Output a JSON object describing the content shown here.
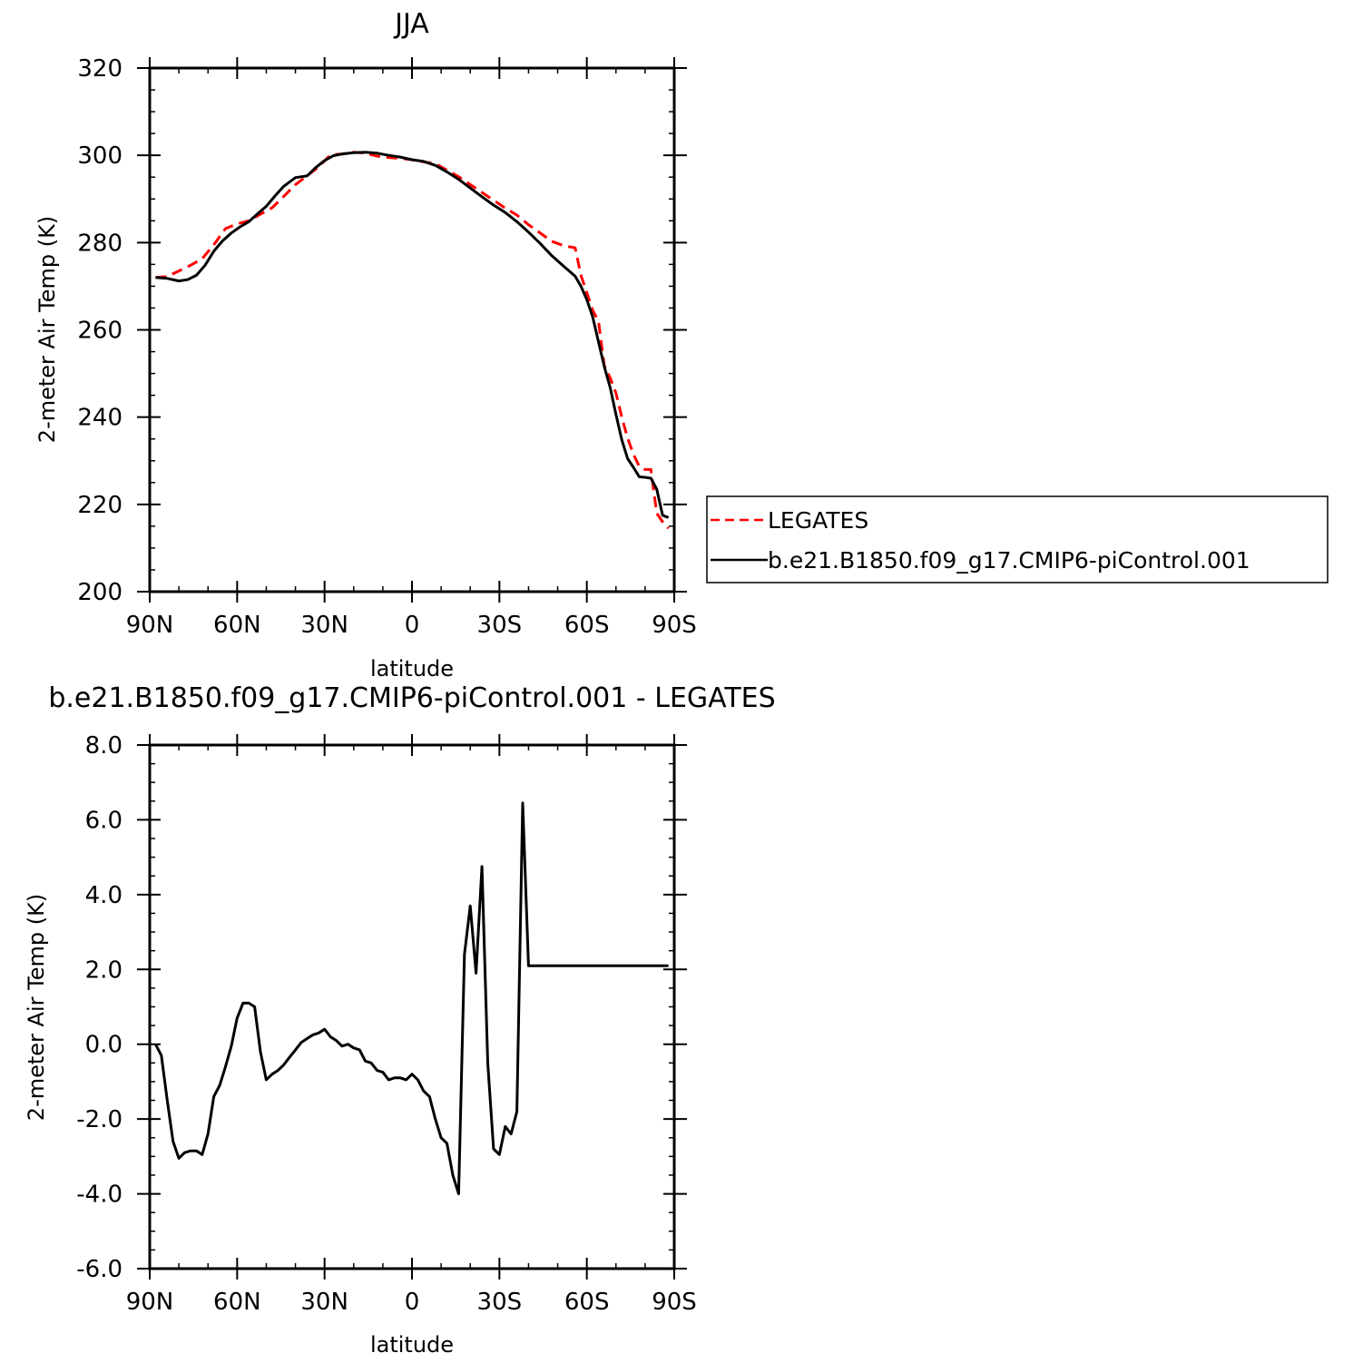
{
  "chart_data": [
    {
      "type": "line",
      "title": "JJA",
      "xlabel": "latitude",
      "ylabel": "2-meter Air Temp (K)",
      "xlim": [
        90,
        -90
      ],
      "ylim": [
        200,
        320
      ],
      "xticks": [
        90,
        60,
        30,
        0,
        -30,
        -60,
        -90
      ],
      "xtick_labels": [
        "90N",
        "60N",
        "30N",
        "0",
        "30S",
        "60S",
        "90S"
      ],
      "yticks": [
        200,
        220,
        240,
        260,
        280,
        300,
        320
      ],
      "ytick_labels": [
        "200",
        "220",
        "240",
        "260",
        "280",
        "300",
        "320"
      ],
      "legend_position": "right",
      "series": [
        {
          "name": "LEGATES",
          "color": "#ff0000",
          "dash": "dashed",
          "x": [
            88,
            84,
            80,
            76,
            72,
            68,
            64,
            60,
            56,
            52,
            48,
            44,
            40,
            36,
            32,
            28,
            24,
            20,
            16,
            12,
            8,
            4,
            0,
            -4,
            -8,
            -12,
            -16,
            -20,
            -24,
            -28,
            -32,
            -36,
            -40,
            -44,
            -48,
            -52,
            -56,
            -58,
            -60,
            -62,
            -64,
            -66,
            -68,
            -70,
            -72,
            -74,
            -76,
            -78,
            -80,
            -82,
            -84,
            -86,
            -88
          ],
          "values": [
            272,
            272.2,
            273.5,
            274.8,
            276.3,
            279.5,
            283.2,
            284.3,
            285,
            286.5,
            288,
            290.6,
            293.3,
            295.3,
            297.4,
            300.1,
            300.3,
            300.7,
            300.5,
            299.8,
            299.5,
            299.3,
            299,
            298.5,
            298.1,
            296.6,
            295.1,
            293.3,
            291.5,
            289.7,
            287.9,
            286.3,
            284.1,
            282.2,
            280.3,
            279.3,
            278.8,
            272.5,
            268.5,
            264.5,
            262,
            251.8,
            249,
            245.5,
            240,
            235.2,
            231.5,
            228.7,
            228,
            228,
            218,
            216,
            214.5
          ]
        },
        {
          "name": "b.e21.B1850.f09_g17.CMIP6-piControl.001",
          "color": "#000000",
          "dash": "solid",
          "x": [
            88,
            84,
            80,
            77,
            74,
            71,
            68,
            65,
            62,
            59,
            56,
            53,
            50,
            47,
            44,
            40,
            36,
            33,
            30,
            27,
            24,
            20,
            16,
            12,
            8,
            4,
            0,
            -4,
            -8,
            -12,
            -16,
            -20,
            -24,
            -28,
            -32,
            -36,
            -40,
            -44,
            -48,
            -52,
            -56,
            -58,
            -60,
            -62,
            -64,
            -66,
            -68,
            -70,
            -72,
            -74,
            -76,
            -78,
            -80,
            -82,
            -84,
            -86,
            -88
          ],
          "values": [
            272,
            271.8,
            271.2,
            271.5,
            272.5,
            274.8,
            278,
            280.4,
            282.2,
            283.6,
            284.8,
            286.6,
            288.3,
            290.7,
            292.9,
            294.9,
            295.3,
            297.2,
            298.8,
            299.9,
            300.3,
            300.6,
            300.7,
            300.5,
            300,
            299.6,
            299,
            298.6,
            297.7,
            296.2,
            294.5,
            292.5,
            290.5,
            288.6,
            286.9,
            284.8,
            282.4,
            279.8,
            277,
            274.6,
            272.3,
            270,
            266.9,
            263,
            257.3,
            251.6,
            246.8,
            240.6,
            234.8,
            230.5,
            228.5,
            226.3,
            226.2,
            226,
            223.5,
            217.5,
            217
          ]
        }
      ]
    },
    {
      "type": "line",
      "title": "b.e21.B1850.f09_g17.CMIP6-piControl.001 - LEGATES",
      "xlabel": "latitude",
      "ylabel": "2-meter Air Temp (K)",
      "xlim": [
        90,
        -90
      ],
      "ylim": [
        -6,
        8
      ],
      "xticks": [
        90,
        60,
        30,
        0,
        -30,
        -60,
        -90
      ],
      "xtick_labels": [
        "90N",
        "60N",
        "30N",
        "0",
        "30S",
        "60S",
        "90S"
      ],
      "yticks": [
        -6,
        -4,
        -2,
        0,
        2,
        4,
        6,
        8
      ],
      "ytick_labels": [
        "-6.0",
        "-4.0",
        "-2.0",
        "0.0",
        "2.0",
        "4.0",
        "6.0",
        "8.0"
      ],
      "series": [
        {
          "color": "#000000",
          "dash": "solid",
          "x": [
            88,
            86,
            84,
            82,
            80,
            78,
            76,
            74,
            72,
            70,
            68,
            66,
            64,
            62,
            60,
            58,
            56,
            54,
            52,
            50,
            48,
            46,
            44,
            42,
            40,
            38,
            36,
            34,
            32,
            30,
            28,
            26,
            24,
            22,
            20,
            18,
            16,
            14,
            12,
            10,
            8,
            6,
            4,
            2,
            0,
            -2,
            -4,
            -6,
            -8,
            -10,
            -12,
            -14,
            -16,
            -18,
            -20,
            -22,
            -24,
            -26,
            -28,
            -30,
            -32,
            -34,
            -36,
            -38,
            -40,
            -42,
            -44,
            -46,
            -48,
            -50,
            -52,
            -54,
            -56,
            -58,
            -60,
            -62,
            -64,
            -66,
            -68,
            -70,
            -72,
            -74,
            -76,
            -78,
            -80,
            -82,
            -84,
            -86,
            -88
          ],
          "values": [
            0,
            -0.3,
            -1.5,
            -2.6,
            -3.05,
            -2.9,
            -2.85,
            -2.85,
            -2.95,
            -2.4,
            -1.4,
            -1.1,
            -0.6,
            -0.05,
            0.7,
            1.1,
            1.1,
            1.0,
            -0.2,
            -0.95,
            -0.8,
            -0.7,
            -0.55,
            -0.35,
            -0.15,
            0.05,
            0.15,
            0.25,
            0.3,
            0.4,
            0.2,
            0.1,
            -0.05,
            0.0,
            -0.1,
            -0.15,
            -0.45,
            -0.5,
            -0.7,
            -0.75,
            -0.95,
            -0.9,
            -0.9,
            -0.95,
            -0.8,
            -0.95,
            -1.25,
            -1.4,
            -2.0,
            -2.5,
            -2.65,
            -3.5,
            -4.0,
            2.4,
            3.7,
            1.9,
            4.75,
            -0.5,
            -2.8,
            -2.95,
            -2.2,
            -2.4,
            -1.8,
            6.45,
            2.1,
            2.1,
            2.1,
            2.1,
            2.1,
            2.1,
            2.1,
            2.1,
            2.1,
            2.1,
            2.1,
            2.1,
            2.1,
            2.1,
            2.1,
            2.1,
            2.1,
            2.1,
            2.1,
            2.1,
            2.1,
            2.1,
            2.1,
            2.1,
            2.1
          ]
        }
      ]
    }
  ]
}
